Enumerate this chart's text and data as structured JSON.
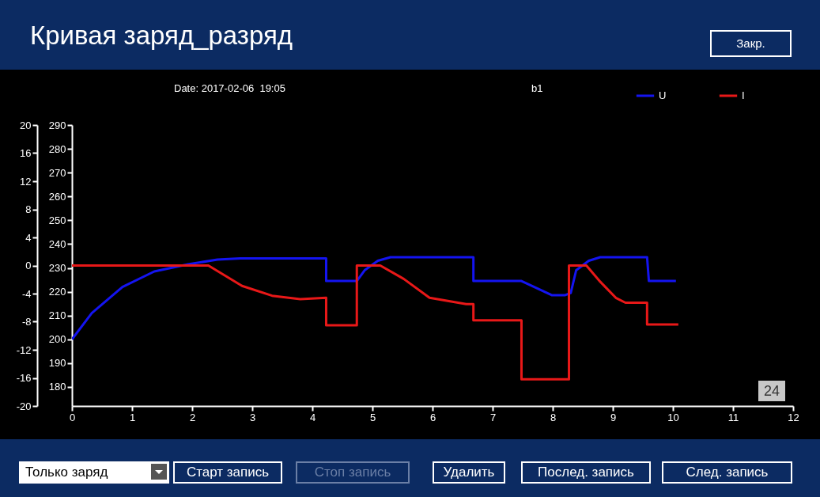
{
  "chart_data": {
    "type": "line",
    "title": "Кривая заряд_разряд",
    "series": [
      {
        "name": "U",
        "color": "#1414f0",
        "x": [
          0,
          0.33,
          0.84,
          1.37,
          1.93,
          2.42,
          2.8,
          4.23,
          4.23,
          4.74,
          4.87,
          5.09,
          5.3,
          6.68,
          6.68,
          7.48,
          7.99,
          8.2,
          8.3,
          8.39,
          8.6,
          8.79,
          9.57,
          9.6,
          10.05
        ],
        "values": [
          200,
          211,
          222,
          228.5,
          231.5,
          233.5,
          234,
          234,
          224.5,
          224.5,
          229,
          233,
          234.5,
          234.5,
          224.5,
          224.5,
          218.5,
          218.5,
          219.5,
          229,
          233,
          234.5,
          234.5,
          224.5,
          224.5
        ]
      },
      {
        "name": "I",
        "color": "#e81818",
        "axis": "y2",
        "x": [
          0,
          2.27,
          2.83,
          3.33,
          3.8,
          4.23,
          4.23,
          4.74,
          4.74,
          5.13,
          5.52,
          5.95,
          6.56,
          6.68,
          6.68,
          7.48,
          7.48,
          8.27,
          8.27,
          8.56,
          8.79,
          9.05,
          9.21,
          9.57,
          9.57,
          10.09
        ],
        "values": [
          0,
          0,
          -2.9,
          -4.3,
          -4.8,
          -4.6,
          -8.5,
          -8.5,
          0,
          0,
          -1.9,
          -4.6,
          -5.5,
          -5.5,
          -7.8,
          -7.8,
          -16.2,
          -16.2,
          0,
          0,
          -2.3,
          -4.6,
          -5.3,
          -5.3,
          -8.4,
          -8.4
        ]
      }
    ],
    "xlim": [
      0,
      12
    ],
    "xticks": [
      0,
      1,
      2,
      3,
      4,
      5,
      6,
      7,
      8,
      9,
      10,
      11,
      12
    ],
    "ylim": [
      172,
      290
    ],
    "yticks": [
      180,
      190,
      200,
      210,
      220,
      230,
      240,
      250,
      260,
      270,
      280,
      290
    ],
    "y2lim": [
      -20,
      20
    ],
    "y2ticks": [
      -20,
      -16,
      -12,
      -8,
      -4,
      0,
      4,
      8,
      12,
      16,
      20
    ],
    "grid": false,
    "legend": "top right",
    "annotations": [
      "Date: 2017-02-06  19:05",
      "b1",
      "24",
      "Закр.",
      "Только заряд",
      "Старт запись",
      "Стоп запись",
      "Удалить",
      "Послед. запись",
      "След. запись"
    ]
  }
}
